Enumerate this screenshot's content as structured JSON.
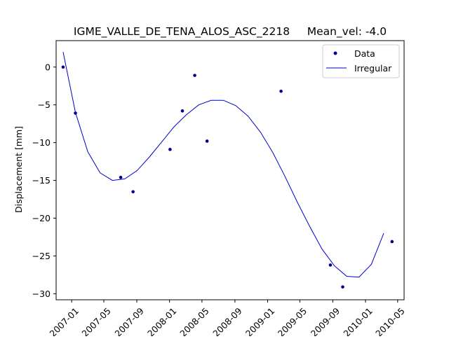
{
  "chart_data": {
    "type": "scatter",
    "title": "IGME_VALLE_DE_TENA_ALOS_ASC_2218     Mean_vel: -4.0",
    "xlabel": "",
    "ylabel": "Displacement [mm]",
    "x_axis_type": "date",
    "xlim": [
      "2006-11-04",
      "2010-05-25"
    ],
    "ylim": [
      -30.8,
      3.5
    ],
    "x_ticks": [
      "2007-01",
      "2007-05",
      "2007-09",
      "2008-01",
      "2008-05",
      "2008-09",
      "2009-01",
      "2009-05",
      "2009-09",
      "2010-01",
      "2010-05"
    ],
    "y_ticks": [
      0,
      -5,
      -10,
      -15,
      -20,
      -25,
      -30
    ],
    "y_tick_labels": [
      "0",
      "−5",
      "−10",
      "−15",
      "−20",
      "−25",
      "−30"
    ],
    "grid": false,
    "legend_position": "top-right",
    "series": [
      {
        "name": "Data",
        "kind": "points",
        "color": "#00008b",
        "points": [
          {
            "x": "2006-11-30",
            "y": 0.0
          },
          {
            "x": "2007-01-15",
            "y": -6.1
          },
          {
            "x": "2007-07-03",
            "y": -14.6
          },
          {
            "x": "2007-08-18",
            "y": -16.5
          },
          {
            "x": "2008-01-03",
            "y": -10.9
          },
          {
            "x": "2008-02-18",
            "y": -5.8
          },
          {
            "x": "2008-04-04",
            "y": -1.1
          },
          {
            "x": "2008-05-20",
            "y": -9.8
          },
          {
            "x": "2009-02-20",
            "y": -3.2
          },
          {
            "x": "2009-08-23",
            "y": -26.2
          },
          {
            "x": "2009-10-08",
            "y": -29.1
          },
          {
            "x": "2010-04-10",
            "y": -23.1
          }
        ]
      },
      {
        "name": "Irregular",
        "kind": "line",
        "color": "#0000cd",
        "points": [
          {
            "x": "2006-11-30",
            "y": 2.0
          },
          {
            "x": "2007-01-15",
            "y": -6.0
          },
          {
            "x": "2007-03-02",
            "y": -11.2
          },
          {
            "x": "2007-04-17",
            "y": -14.0
          },
          {
            "x": "2007-06-02",
            "y": -15.0
          },
          {
            "x": "2007-07-18",
            "y": -14.8
          },
          {
            "x": "2007-09-02",
            "y": -13.7
          },
          {
            "x": "2007-10-18",
            "y": -11.9
          },
          {
            "x": "2007-12-03",
            "y": -9.9
          },
          {
            "x": "2008-01-18",
            "y": -7.9
          },
          {
            "x": "2008-03-04",
            "y": -6.3
          },
          {
            "x": "2008-04-19",
            "y": -5.0
          },
          {
            "x": "2008-06-04",
            "y": -4.4
          },
          {
            "x": "2008-07-20",
            "y": -4.4
          },
          {
            "x": "2008-09-04",
            "y": -5.1
          },
          {
            "x": "2008-10-20",
            "y": -6.5
          },
          {
            "x": "2008-12-05",
            "y": -8.6
          },
          {
            "x": "2009-01-20",
            "y": -11.3
          },
          {
            "x": "2009-03-07",
            "y": -14.5
          },
          {
            "x": "2009-04-22",
            "y": -17.9
          },
          {
            "x": "2009-06-07",
            "y": -21.1
          },
          {
            "x": "2009-07-23",
            "y": -24.1
          },
          {
            "x": "2009-09-07",
            "y": -26.3
          },
          {
            "x": "2009-10-23",
            "y": -27.7
          },
          {
            "x": "2009-12-08",
            "y": -27.8
          },
          {
            "x": "2010-01-23",
            "y": -26.1
          },
          {
            "x": "2010-03-10",
            "y": -22.0
          }
        ]
      }
    ]
  }
}
